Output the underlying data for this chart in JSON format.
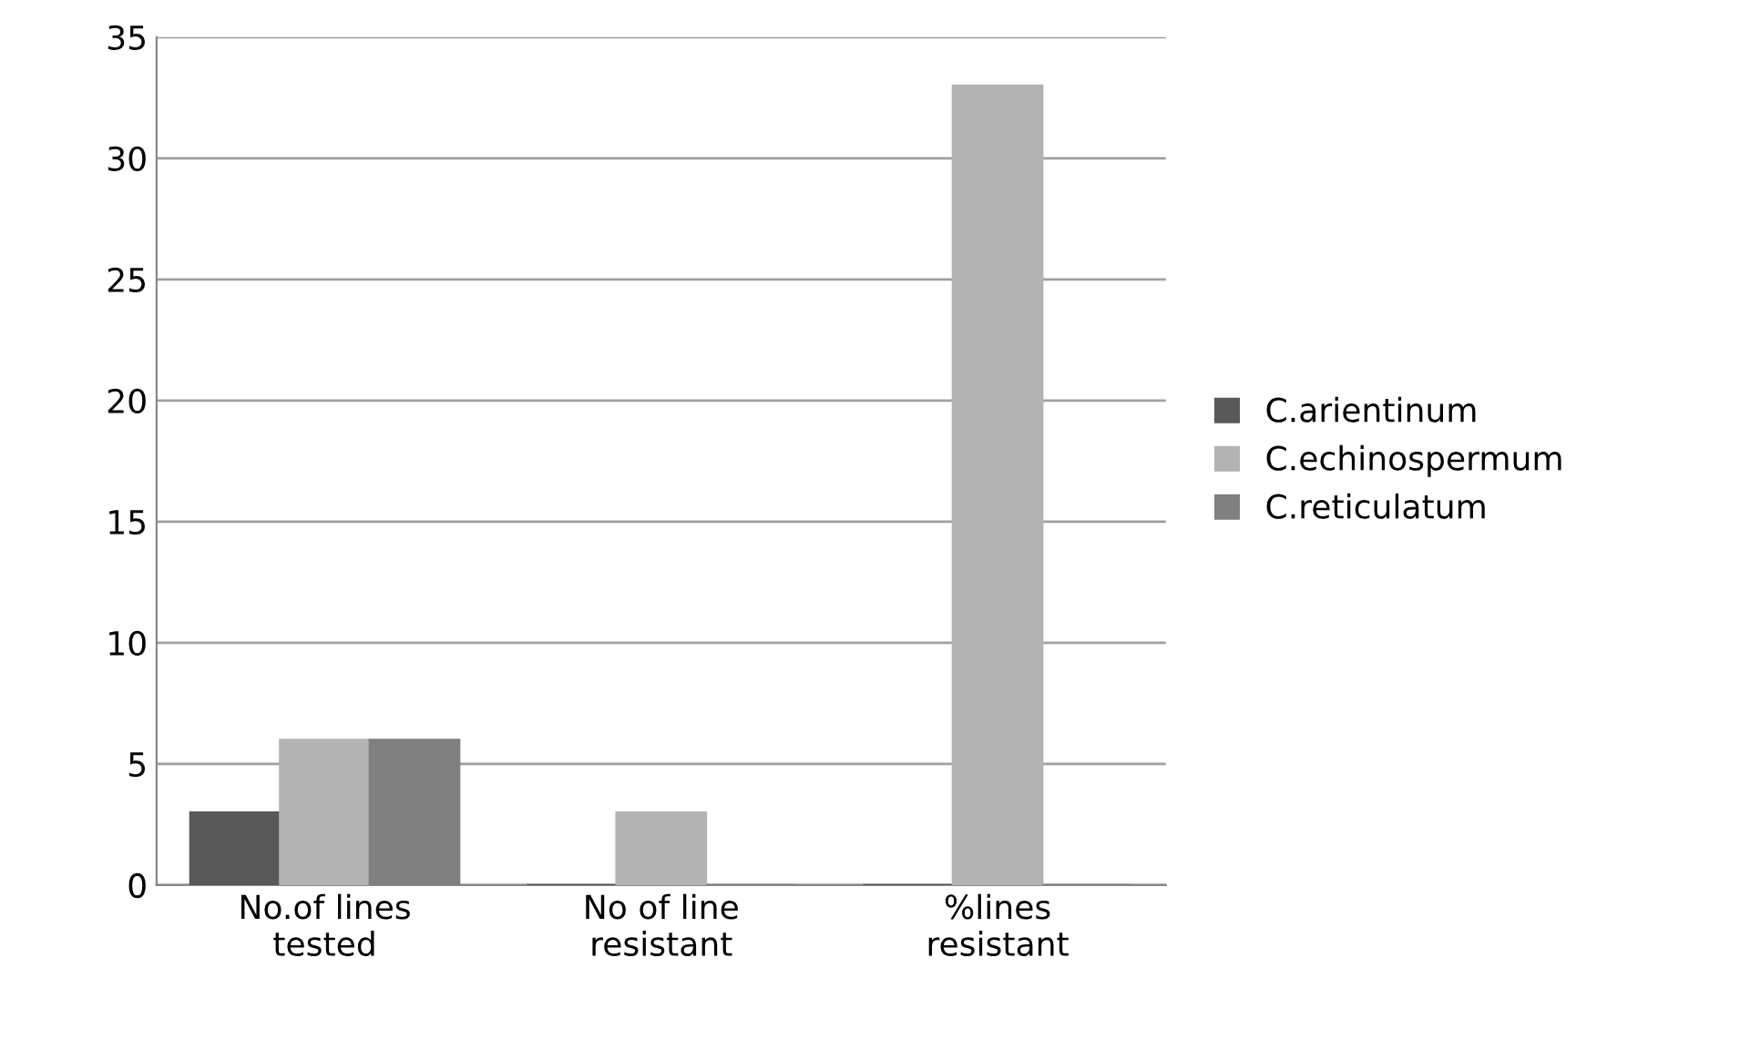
{
  "chart_data": {
    "type": "bar",
    "categories": [
      "No.of lines tested",
      "No of line resistant",
      "%lines resistant"
    ],
    "series": [
      {
        "name": "C.arientinum",
        "color": "#595959",
        "values": [
          3,
          0,
          0
        ]
      },
      {
        "name": "C.echinospermum",
        "color": "#b3b3b3",
        "values": [
          6,
          3,
          33
        ]
      },
      {
        "name": "C.reticulatum",
        "color": "#808080",
        "values": [
          6,
          0,
          0
        ]
      }
    ],
    "ylim": [
      0,
      35
    ],
    "yticks": [
      0,
      5,
      10,
      15,
      20,
      25,
      30,
      35
    ],
    "grid": "y",
    "legend": "right"
  }
}
